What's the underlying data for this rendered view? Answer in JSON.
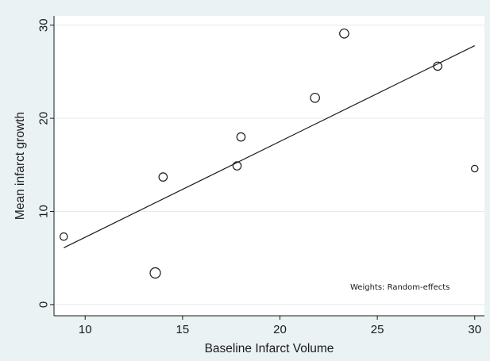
{
  "chart_data": {
    "type": "scatter",
    "xlabel": "Baseline Infarct Volume",
    "ylabel": "Mean infarct growth",
    "xlim": [
      8.4,
      30.5
    ],
    "ylim": [
      -1.2,
      31
    ],
    "x_ticks": [
      10,
      15,
      20,
      25,
      30
    ],
    "y_ticks": [
      0,
      10,
      20,
      30
    ],
    "grid": "horizontal",
    "annotation": "Weights: Random-effects",
    "annotation_position": "bottom-right",
    "points": [
      {
        "x": 8.9,
        "y": 7.3,
        "weight": 0.9
      },
      {
        "x": 13.6,
        "y": 3.4,
        "weight": 1.25
      },
      {
        "x": 14.0,
        "y": 13.7,
        "weight": 1.0
      },
      {
        "x": 17.8,
        "y": 14.9,
        "weight": 1.0
      },
      {
        "x": 18.0,
        "y": 18.0,
        "weight": 1.0
      },
      {
        "x": 21.8,
        "y": 22.2,
        "weight": 1.1
      },
      {
        "x": 23.3,
        "y": 29.1,
        "weight": 1.1
      },
      {
        "x": 28.1,
        "y": 25.6,
        "weight": 1.0
      },
      {
        "x": 30.0,
        "y": 14.6,
        "weight": 0.8
      }
    ],
    "fit_line": {
      "x": [
        8.9,
        30.0
      ],
      "y": [
        6.1,
        27.8
      ]
    }
  },
  "colors": {
    "background": "#eaf2f3",
    "plot_background": "#ffffff",
    "grid": "#e4eaea",
    "marker_stroke": "#1a1a1a",
    "line": "#1a1a1a"
  }
}
